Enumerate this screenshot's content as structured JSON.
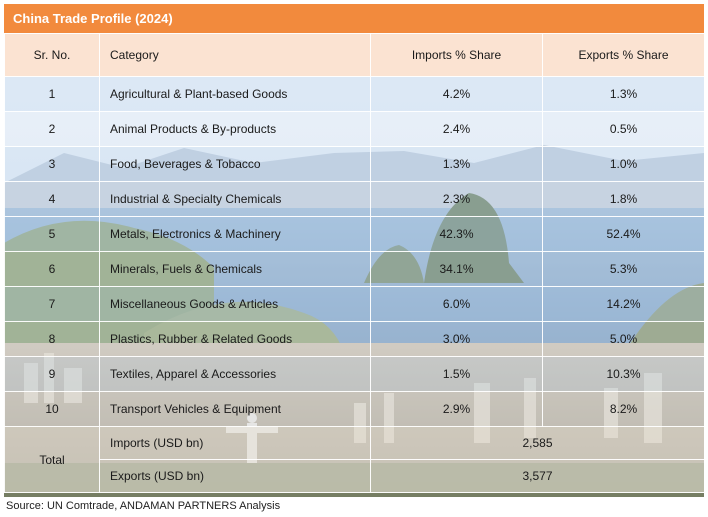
{
  "title": "China Trade Profile (2024)",
  "headers": {
    "sr": "Sr. No.",
    "category": "Category",
    "imports": "Imports % Share",
    "exports": "Exports % Share"
  },
  "rows": [
    {
      "sr": "1",
      "category": "Agricultural & Plant-based Goods",
      "imports": "4.2%",
      "exports": "1.3%"
    },
    {
      "sr": "2",
      "category": "Animal Products & By-products",
      "imports": "2.4%",
      "exports": "0.5%"
    },
    {
      "sr": "3",
      "category": "Food, Beverages & Tobacco",
      "imports": "1.3%",
      "exports": "1.0%"
    },
    {
      "sr": "4",
      "category": "Industrial & Specialty Chemicals",
      "imports": "2.3%",
      "exports": "1.8%"
    },
    {
      "sr": "5",
      "category": "Metals, Electronics & Machinery",
      "imports": "42.3%",
      "exports": "52.4%"
    },
    {
      "sr": "6",
      "category": "Minerals, Fuels & Chemicals",
      "imports": "34.1%",
      "exports": "5.3%"
    },
    {
      "sr": "7",
      "category": "Miscellaneous Goods & Articles",
      "imports": "6.0%",
      "exports": "14.2%"
    },
    {
      "sr": "8",
      "category": "Plastics, Rubber & Related Goods",
      "imports": "3.0%",
      "exports": "5.0%"
    },
    {
      "sr": "9",
      "category": "Textiles, Apparel & Accessories",
      "imports": "1.5%",
      "exports": "10.3%"
    },
    {
      "sr": "10",
      "category": "Transport Vehicles & Equipment",
      "imports": "2.9%",
      "exports": "8.2%"
    }
  ],
  "total": {
    "label": "Total",
    "imports_label": "Imports (USD bn)",
    "imports_value": "2,585",
    "exports_label": "Exports (USD bn)",
    "exports_value": "3,577"
  },
  "source": "Source: UN Comtrade, ANDAMAN PARTNERS Analysis",
  "colors": {
    "title_bar": "#f28a3d",
    "header_bg": "#fbe3d2"
  }
}
